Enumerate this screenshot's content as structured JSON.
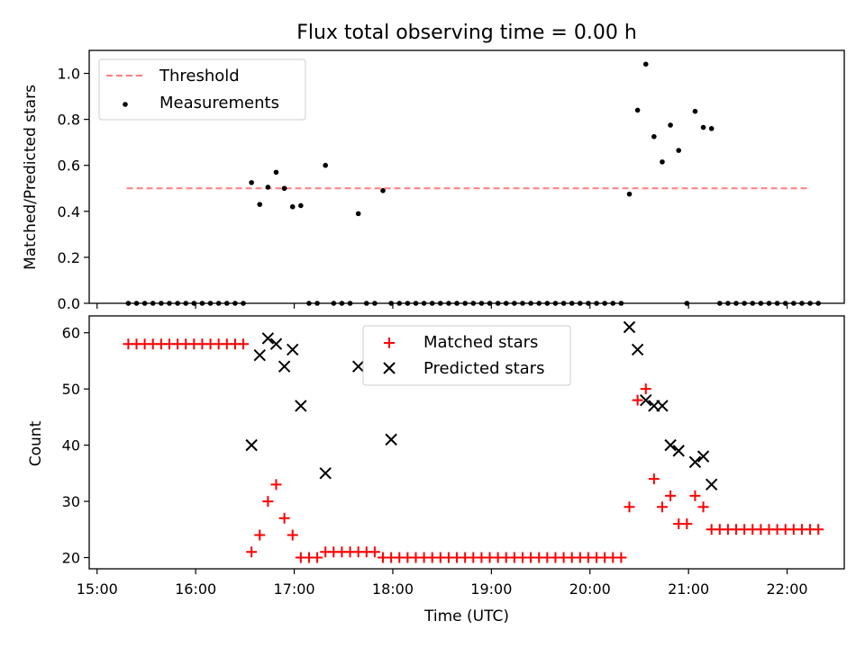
{
  "figure": {
    "title": "Flux total observing time = 0.00 h",
    "xlabel": "Time (UTC)"
  },
  "colors": {
    "threshold": "#ff7f7f",
    "measurements": "#000000",
    "matched": "#ff0000",
    "predicted": "#000000"
  },
  "chart_data": [
    {
      "type": "scatter",
      "ylabel": "Matched/Predicted stars",
      "xlim_hours": [
        14.92,
        22.58
      ],
      "ylim": [
        0,
        1.1
      ],
      "yticks": [
        0.0,
        0.2,
        0.4,
        0.6,
        0.8,
        1.0
      ],
      "ytick_labels": [
        "0.0",
        "0.2",
        "0.4",
        "0.6",
        "0.8",
        "1.0"
      ],
      "xtick_hours": [
        15,
        16,
        17,
        18,
        19,
        20,
        21,
        22
      ],
      "xtick_labels": [
        "",
        "",
        "",
        "",
        "",
        "",
        "",
        ""
      ],
      "grid": false,
      "legend_position": "top-left",
      "series": [
        {
          "name": "Threshold",
          "style": "dashed-line",
          "x": [
            "15:18",
            "22:12"
          ],
          "y": [
            0.5,
            0.5
          ]
        },
        {
          "name": "Measurements",
          "style": "dot",
          "x": [
            "15:19",
            "15:24",
            "15:29",
            "15:34",
            "15:39",
            "15:44",
            "15:49",
            "15:54",
            "15:59",
            "16:04",
            "16:09",
            "16:14",
            "16:19",
            "16:24",
            "16:29",
            "16:34",
            "16:39",
            "16:44",
            "16:49",
            "16:54",
            "16:59",
            "17:04",
            "17:09",
            "17:14",
            "17:19",
            "17:24",
            "17:29",
            "17:34",
            "17:39",
            "17:44",
            "17:49",
            "17:54",
            "17:59",
            "18:04",
            "18:09",
            "18:14",
            "18:19",
            "18:24",
            "18:29",
            "18:34",
            "18:39",
            "18:44",
            "18:49",
            "18:54",
            "18:59",
            "19:04",
            "19:09",
            "19:14",
            "19:19",
            "19:24",
            "19:29",
            "19:34",
            "19:39",
            "19:44",
            "19:49",
            "19:54",
            "19:59",
            "20:04",
            "20:09",
            "20:14",
            "20:19",
            "20:24",
            "20:29",
            "20:34",
            "20:39",
            "20:44",
            "20:49",
            "20:54",
            "20:59",
            "21:04",
            "21:09",
            "21:14",
            "21:19",
            "21:24",
            "21:29",
            "21:34",
            "21:39",
            "21:44",
            "21:49",
            "21:54",
            "21:59",
            "22:04",
            "22:09",
            "22:14",
            "22:19"
          ],
          "y": [
            0,
            0,
            0,
            0,
            0,
            0,
            0,
            0,
            0,
            0,
            0,
            0,
            0,
            0,
            0,
            0.525,
            0.43,
            0.505,
            0.57,
            0.5,
            0.42,
            0.425,
            0,
            0,
            0.6,
            0,
            0,
            0,
            0.39,
            0,
            0,
            0.49,
            0,
            0,
            0,
            0,
            0,
            0,
            0,
            0,
            0,
            0,
            0,
            0,
            0,
            0,
            0,
            0,
            0,
            0,
            0,
            0,
            0,
            0,
            0,
            0,
            0,
            0,
            0,
            0,
            0,
            0.475,
            0.84,
            1.04,
            0.725,
            0.615,
            0.775,
            0.665,
            0,
            0.835,
            0.765,
            0.76,
            0,
            0,
            0,
            0,
            0,
            0,
            0,
            0,
            0,
            0,
            0,
            0,
            0
          ]
        }
      ]
    },
    {
      "type": "scatter",
      "ylabel": "Count",
      "xlim_hours": [
        14.92,
        22.58
      ],
      "ylim": [
        18,
        63
      ],
      "yticks": [
        20,
        30,
        40,
        50,
        60
      ],
      "ytick_labels": [
        "20",
        "30",
        "40",
        "50",
        "60"
      ],
      "xtick_hours": [
        15,
        16,
        17,
        18,
        19,
        20,
        21,
        22
      ],
      "xtick_labels": [
        "15:00",
        "16:00",
        "17:00",
        "18:00",
        "19:00",
        "20:00",
        "21:00",
        "22:00"
      ],
      "grid": false,
      "legend_position": "top-center",
      "series": [
        {
          "name": "Matched stars",
          "style": "plus",
          "x": [
            "15:19",
            "15:24",
            "15:29",
            "15:34",
            "15:39",
            "15:44",
            "15:49",
            "15:54",
            "15:59",
            "16:04",
            "16:09",
            "16:14",
            "16:19",
            "16:24",
            "16:29",
            "16:34",
            "16:39",
            "16:44",
            "16:49",
            "16:54",
            "16:59",
            "17:04",
            "17:09",
            "17:14",
            "17:19",
            "17:24",
            "17:29",
            "17:34",
            "17:39",
            "17:44",
            "17:49",
            "17:54",
            "17:59",
            "18:04",
            "18:09",
            "18:14",
            "18:19",
            "18:24",
            "18:29",
            "18:34",
            "18:39",
            "18:44",
            "18:49",
            "18:54",
            "18:59",
            "19:04",
            "19:09",
            "19:14",
            "19:19",
            "19:24",
            "19:29",
            "19:34",
            "19:39",
            "19:44",
            "19:49",
            "19:54",
            "19:59",
            "20:04",
            "20:09",
            "20:14",
            "20:19",
            "20:24",
            "20:29",
            "20:34",
            "20:39",
            "20:44",
            "20:49",
            "20:54",
            "20:59",
            "21:04",
            "21:09",
            "21:14",
            "21:19",
            "21:24",
            "21:29",
            "21:34",
            "21:39",
            "21:44",
            "21:49",
            "21:54",
            "21:59",
            "22:04",
            "22:09",
            "22:14",
            "22:19"
          ],
          "y": [
            58,
            58,
            58,
            58,
            58,
            58,
            58,
            58,
            58,
            58,
            58,
            58,
            58,
            58,
            58,
            21,
            24,
            30,
            33,
            27,
            24,
            20,
            20,
            20,
            21,
            21,
            21,
            21,
            21,
            21,
            21,
            20,
            20,
            20,
            20,
            20,
            20,
            20,
            20,
            20,
            20,
            20,
            20,
            20,
            20,
            20,
            20,
            20,
            20,
            20,
            20,
            20,
            20,
            20,
            20,
            20,
            20,
            20,
            20,
            20,
            20,
            29,
            48,
            50,
            34,
            29,
            31,
            26,
            26,
            31,
            29,
            25,
            25,
            25,
            25,
            25,
            25,
            25,
            25,
            25,
            25,
            25,
            25,
            25,
            25
          ]
        },
        {
          "name": "Predicted stars",
          "style": "x",
          "x": [
            "16:34",
            "16:39",
            "16:44",
            "16:49",
            "16:54",
            "16:59",
            "17:04",
            "17:19",
            "17:39",
            "17:59",
            "20:24",
            "20:29",
            "20:34",
            "20:39",
            "20:44",
            "20:49",
            "20:54",
            "21:04",
            "21:09",
            "21:14"
          ],
          "y": [
            40,
            56,
            59,
            58,
            54,
            57,
            47,
            35,
            54,
            41,
            61,
            57,
            48,
            47,
            47,
            40,
            39,
            37,
            38,
            33
          ]
        }
      ]
    }
  ]
}
